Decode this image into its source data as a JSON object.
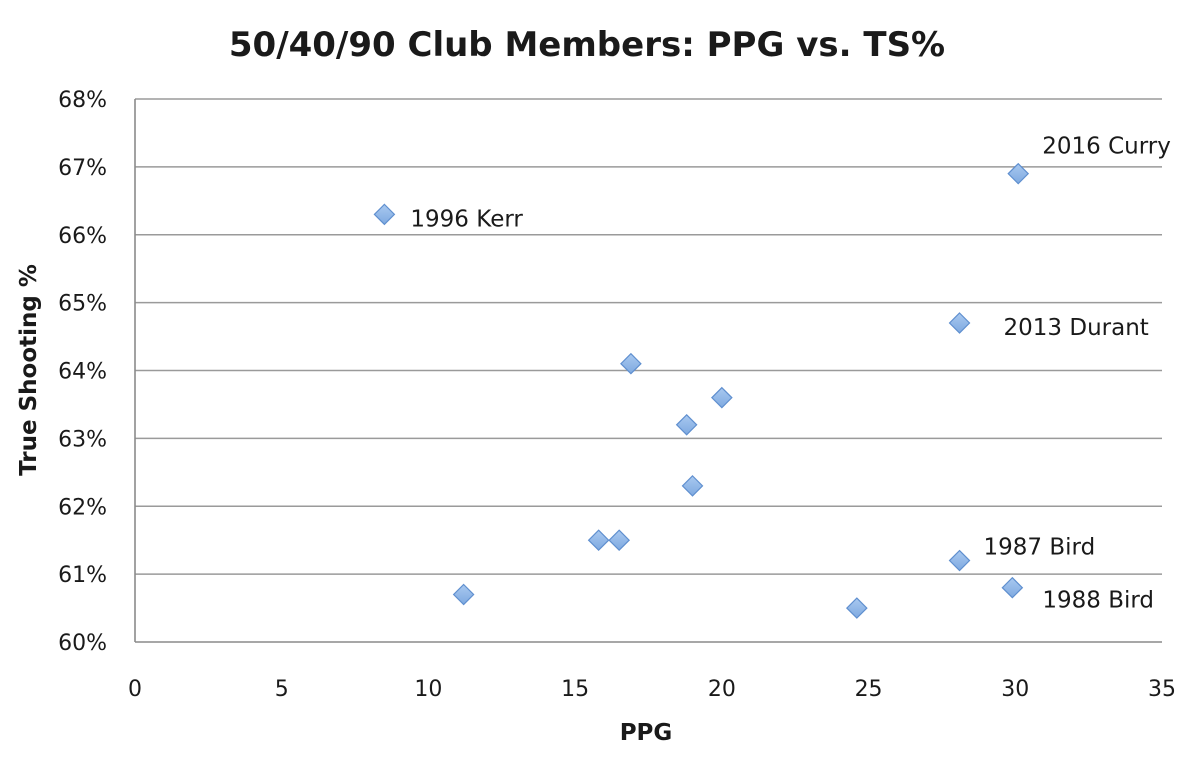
{
  "chart_data": {
    "type": "scatter",
    "title": "50/40/90 Club Members: PPG vs. TS%",
    "xlabel": "PPG",
    "ylabel": "True Shooting %",
    "xlim": [
      0,
      35
    ],
    "ylim": [
      60,
      68
    ],
    "x_ticks": [
      0,
      5,
      10,
      15,
      20,
      25,
      30,
      35
    ],
    "y_ticks": [
      60,
      61,
      62,
      63,
      64,
      65,
      66,
      67,
      68
    ],
    "x_tick_labels": [
      "0",
      "5",
      "10",
      "15",
      "20",
      "25",
      "30",
      "35"
    ],
    "y_tick_labels": [
      "60%",
      "61%",
      "62%",
      "63%",
      "64%",
      "65%",
      "66%",
      "67%",
      "68%"
    ],
    "grid": "horizontal",
    "legend": "none",
    "marker": "diamond",
    "marker_color": "#7ea9e0",
    "points": [
      {
        "x": 8.5,
        "y": 66.3,
        "label": "1996 Kerr"
      },
      {
        "x": 11.2,
        "y": 60.7,
        "label": ""
      },
      {
        "x": 15.8,
        "y": 61.5,
        "label": ""
      },
      {
        "x": 16.5,
        "y": 61.5,
        "label": ""
      },
      {
        "x": 16.9,
        "y": 64.1,
        "label": ""
      },
      {
        "x": 18.8,
        "y": 63.2,
        "label": ""
      },
      {
        "x": 19.0,
        "y": 62.3,
        "label": ""
      },
      {
        "x": 20.0,
        "y": 63.6,
        "label": ""
      },
      {
        "x": 24.6,
        "y": 60.5,
        "label": ""
      },
      {
        "x": 28.1,
        "y": 64.7,
        "label": "2013 Durant"
      },
      {
        "x": 28.1,
        "y": 61.2,
        "label": "1987 Bird"
      },
      {
        "x": 29.9,
        "y": 60.8,
        "label": "1988 Bird"
      },
      {
        "x": 30.1,
        "y": 66.9,
        "label": "2016 Curry"
      }
    ]
  }
}
